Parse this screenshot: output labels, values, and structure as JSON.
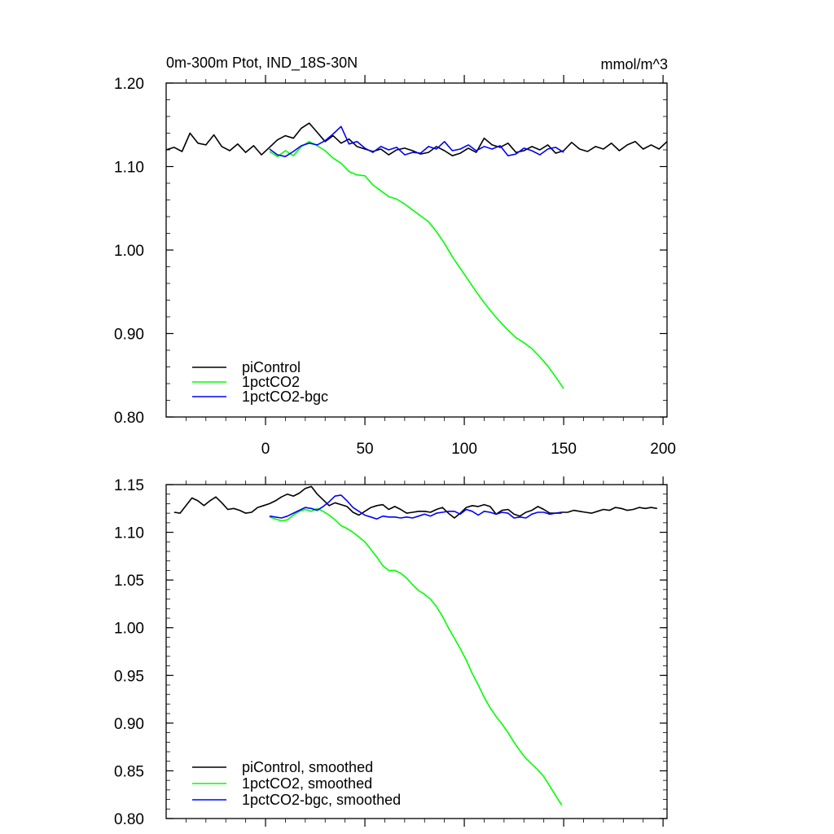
{
  "chart_data": [
    {
      "type": "line",
      "title_left": "0m-300m Ptot, IND_18S-30N",
      "title_right": "mmol/m^3",
      "xlim": [
        -50,
        202
      ],
      "ylim": [
        0.8,
        1.2
      ],
      "x_ticks": [
        0,
        50,
        100,
        150,
        200
      ],
      "x_tick_labels": [
        "0",
        "50",
        "100",
        "150",
        "200"
      ],
      "y_ticks": [
        0.8,
        0.9,
        1.0,
        1.1,
        1.2
      ],
      "y_tick_labels": [
        "0.80",
        "0.90",
        "1.00",
        "1.10",
        "1.20"
      ],
      "legend_position": "bottom-left",
      "series": [
        {
          "name": "piControl",
          "color": "#000000",
          "x": [
            -50,
            -46,
            -42,
            -38,
            -34,
            -30,
            -26,
            -22,
            -18,
            -14,
            -10,
            -6,
            -2,
            2,
            6,
            10,
            14,
            18,
            22,
            26,
            30,
            34,
            38,
            42,
            46,
            50,
            54,
            58,
            62,
            66,
            70,
            74,
            78,
            82,
            86,
            90,
            94,
            98,
            102,
            106,
            110,
            114,
            118,
            122,
            126,
            130,
            134,
            138,
            142,
            146,
            150,
            154,
            158,
            162,
            166,
            170,
            174,
            178,
            182,
            186,
            190,
            194,
            198,
            202
          ],
          "values": [
            1.12,
            1.123,
            1.118,
            1.14,
            1.128,
            1.126,
            1.138,
            1.124,
            1.119,
            1.127,
            1.117,
            1.125,
            1.114,
            1.123,
            1.132,
            1.137,
            1.134,
            1.146,
            1.152,
            1.141,
            1.13,
            1.137,
            1.128,
            1.133,
            1.124,
            1.121,
            1.118,
            1.121,
            1.114,
            1.12,
            1.122,
            1.119,
            1.115,
            1.117,
            1.124,
            1.119,
            1.113,
            1.116,
            1.122,
            1.117,
            1.134,
            1.126,
            1.123,
            1.128,
            1.117,
            1.119,
            1.124,
            1.12,
            1.126,
            1.116,
            1.119,
            1.129,
            1.121,
            1.118,
            1.124,
            1.121,
            1.128,
            1.119,
            1.126,
            1.13,
            1.121,
            1.126,
            1.121,
            1.13
          ]
        },
        {
          "name": "1pctCO2",
          "color": "#00ff00",
          "x": [
            2,
            6,
            10,
            14,
            18,
            22,
            26,
            30,
            34,
            38,
            42,
            46,
            50,
            54,
            58,
            62,
            66,
            70,
            74,
            78,
            82,
            86,
            90,
            94,
            98,
            102,
            106,
            110,
            114,
            118,
            122,
            126,
            130,
            134,
            138,
            142,
            146,
            150
          ],
          "values": [
            1.118,
            1.112,
            1.119,
            1.113,
            1.124,
            1.13,
            1.125,
            1.119,
            1.11,
            1.104,
            1.094,
            1.09,
            1.089,
            1.078,
            1.071,
            1.064,
            1.061,
            1.055,
            1.048,
            1.041,
            1.034,
            1.022,
            1.008,
            0.992,
            0.978,
            0.964,
            0.95,
            0.937,
            0.925,
            0.914,
            0.904,
            0.895,
            0.889,
            0.882,
            0.872,
            0.861,
            0.848,
            0.834
          ]
        },
        {
          "name": "1pctCO2-bgc",
          "color": "#0000ff",
          "x": [
            2,
            6,
            10,
            14,
            18,
            22,
            26,
            30,
            34,
            38,
            42,
            46,
            50,
            54,
            58,
            62,
            66,
            70,
            74,
            78,
            82,
            86,
            90,
            94,
            98,
            102,
            106,
            110,
            114,
            118,
            122,
            126,
            130,
            134,
            138,
            142,
            146,
            150
          ],
          "values": [
            1.121,
            1.114,
            1.112,
            1.118,
            1.125,
            1.128,
            1.126,
            1.131,
            1.139,
            1.148,
            1.127,
            1.13,
            1.122,
            1.117,
            1.124,
            1.12,
            1.123,
            1.114,
            1.117,
            1.116,
            1.124,
            1.121,
            1.13,
            1.119,
            1.121,
            1.126,
            1.119,
            1.124,
            1.121,
            1.125,
            1.113,
            1.115,
            1.122,
            1.119,
            1.114,
            1.121,
            1.123,
            1.117
          ]
        }
      ]
    },
    {
      "type": "line",
      "xlim": [
        -50,
        202
      ],
      "ylim": [
        0.8,
        1.15
      ],
      "x_ticks": [
        0,
        50,
        100,
        150,
        200
      ],
      "y_ticks": [
        0.8,
        0.85,
        0.9,
        0.95,
        1.0,
        1.05,
        1.1,
        1.15
      ],
      "y_tick_labels": [
        "0.80",
        "0.85",
        "0.90",
        "0.95",
        "1.00",
        "1.05",
        "1.10",
        "1.15"
      ],
      "legend_position": "bottom-left",
      "series": [
        {
          "name": "piControl, smoothed",
          "color": "#000000",
          "x": [
            -46,
            -43,
            -40,
            -37,
            -34,
            -31,
            -28,
            -25,
            -22,
            -19,
            -16,
            -13,
            -10,
            -7,
            -4,
            -1,
            2,
            5,
            8,
            11,
            14,
            17,
            20,
            23,
            26,
            29,
            32,
            35,
            38,
            41,
            44,
            47,
            50,
            53,
            56,
            59,
            62,
            65,
            68,
            71,
            74,
            77,
            80,
            83,
            86,
            89,
            92,
            95,
            98,
            101,
            104,
            107,
            110,
            113,
            116,
            119,
            122,
            125,
            128,
            131,
            134,
            137,
            140,
            143,
            146,
            149,
            152,
            155,
            158,
            161,
            164,
            167,
            170,
            173,
            176,
            179,
            182,
            185,
            188,
            191,
            194,
            197
          ],
          "values": [
            1.121,
            1.12,
            1.128,
            1.136,
            1.133,
            1.128,
            1.133,
            1.137,
            1.131,
            1.124,
            1.125,
            1.123,
            1.12,
            1.121,
            1.126,
            1.128,
            1.13,
            1.133,
            1.137,
            1.14,
            1.138,
            1.141,
            1.146,
            1.148,
            1.14,
            1.134,
            1.128,
            1.131,
            1.129,
            1.127,
            1.121,
            1.118,
            1.122,
            1.126,
            1.128,
            1.129,
            1.124,
            1.127,
            1.124,
            1.12,
            1.121,
            1.122,
            1.122,
            1.121,
            1.124,
            1.126,
            1.12,
            1.115,
            1.12,
            1.126,
            1.128,
            1.127,
            1.129,
            1.127,
            1.119,
            1.123,
            1.124,
            1.119,
            1.117,
            1.121,
            1.123,
            1.127,
            1.124,
            1.12,
            1.12,
            1.121,
            1.121,
            1.123,
            1.122,
            1.121,
            1.12,
            1.122,
            1.124,
            1.123,
            1.126,
            1.125,
            1.123,
            1.124,
            1.126,
            1.125,
            1.126,
            1.125
          ]
        },
        {
          "name": "1pctCO2, smoothed",
          "color": "#00ff00",
          "x": [
            2,
            5,
            8,
            11,
            14,
            17,
            20,
            23,
            26,
            29,
            32,
            35,
            38,
            41,
            44,
            47,
            50,
            53,
            56,
            59,
            62,
            65,
            68,
            71,
            74,
            77,
            80,
            83,
            86,
            89,
            92,
            95,
            98,
            101,
            104,
            107,
            110,
            113,
            116,
            119,
            122,
            125,
            128,
            131,
            134,
            137,
            140,
            143,
            146,
            149
          ],
          "values": [
            1.116,
            1.114,
            1.112,
            1.113,
            1.118,
            1.122,
            1.124,
            1.122,
            1.125,
            1.122,
            1.118,
            1.113,
            1.107,
            1.104,
            1.1,
            1.095,
            1.09,
            1.082,
            1.074,
            1.065,
            1.06,
            1.06,
            1.057,
            1.052,
            1.045,
            1.039,
            1.035,
            1.03,
            1.022,
            1.012,
            1.0,
            0.989,
            0.978,
            0.966,
            0.952,
            0.94,
            0.927,
            0.916,
            0.907,
            0.899,
            0.89,
            0.88,
            0.871,
            0.863,
            0.857,
            0.851,
            0.844,
            0.834,
            0.824,
            0.814
          ]
        },
        {
          "name": "1pctCO2-bgc, smoothed",
          "color": "#0000ff",
          "x": [
            2,
            5,
            8,
            11,
            14,
            17,
            20,
            23,
            26,
            29,
            32,
            35,
            38,
            41,
            44,
            47,
            50,
            53,
            56,
            59,
            62,
            65,
            68,
            71,
            74,
            77,
            80,
            83,
            86,
            89,
            92,
            95,
            98,
            101,
            104,
            107,
            110,
            113,
            116,
            119,
            122,
            125,
            128,
            131,
            134,
            137,
            140,
            143,
            146,
            149
          ],
          "values": [
            1.117,
            1.116,
            1.115,
            1.117,
            1.12,
            1.123,
            1.126,
            1.125,
            1.123,
            1.127,
            1.132,
            1.138,
            1.139,
            1.133,
            1.126,
            1.122,
            1.118,
            1.116,
            1.114,
            1.117,
            1.116,
            1.116,
            1.115,
            1.116,
            1.115,
            1.117,
            1.119,
            1.117,
            1.12,
            1.121,
            1.122,
            1.122,
            1.119,
            1.124,
            1.122,
            1.118,
            1.122,
            1.121,
            1.119,
            1.121,
            1.12,
            1.115,
            1.116,
            1.115,
            1.119,
            1.121,
            1.121,
            1.119,
            1.12,
            1.12
          ]
        }
      ]
    }
  ]
}
